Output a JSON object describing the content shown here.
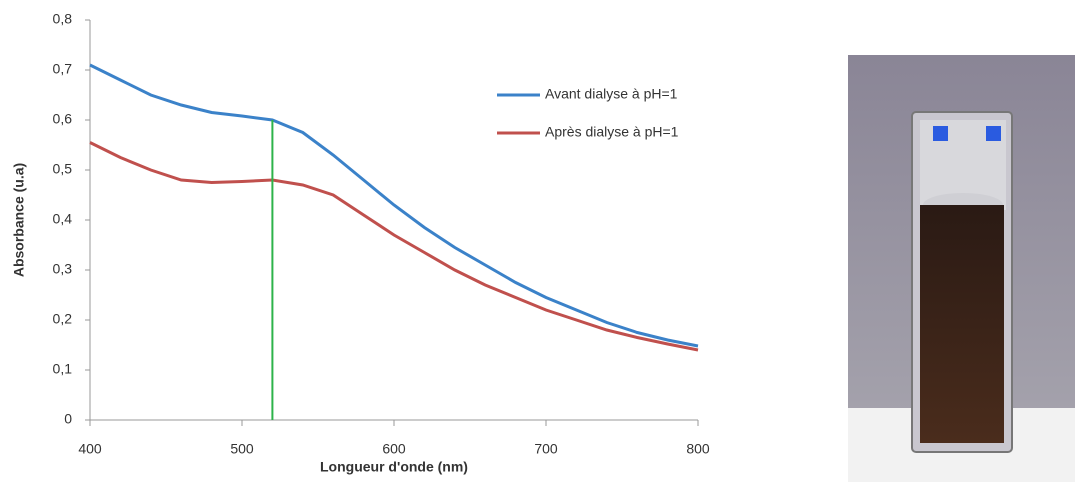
{
  "chart_data": {
    "type": "line",
    "y_label": "Absorbance (u.a)",
    "x_label": "Longueur d'onde (nm)",
    "x": [
      400,
      420,
      440,
      460,
      480,
      500,
      520,
      540,
      560,
      580,
      600,
      620,
      640,
      660,
      680,
      700,
      720,
      740,
      760,
      780,
      800
    ],
    "series": [
      {
        "name": "Avant dialyse à pH=1",
        "color": "#3b82c9",
        "values": [
          0.71,
          0.68,
          0.65,
          0.63,
          0.615,
          0.608,
          0.6,
          0.575,
          0.53,
          0.48,
          0.43,
          0.385,
          0.345,
          0.31,
          0.275,
          0.245,
          0.22,
          0.195,
          0.175,
          0.16,
          0.148
        ]
      },
      {
        "name": "Après dialyse à pH=1",
        "color": "#c0504d",
        "values": [
          0.555,
          0.525,
          0.5,
          0.48,
          0.475,
          0.477,
          0.48,
          0.47,
          0.45,
          0.41,
          0.37,
          0.335,
          0.3,
          0.27,
          0.245,
          0.22,
          0.2,
          0.18,
          0.165,
          0.152,
          0.14
        ]
      }
    ],
    "marker_x": 520,
    "marker_color": "#2db34a",
    "xlim": [
      400,
      800
    ],
    "xticks": [
      400,
      500,
      600,
      700,
      800
    ],
    "ylim": [
      0,
      0.8
    ],
    "yticks": [
      0,
      {
        "value": 0.1,
        "label": "0,1"
      },
      {
        "value": 0.2,
        "label": "0,2"
      },
      {
        "value": 0.3,
        "label": "0,3"
      },
      {
        "value": 0.4,
        "label": "0,4"
      },
      {
        "value": 0.5,
        "label": "0,5"
      },
      {
        "value": 0.6,
        "label": "0,6"
      },
      {
        "value": 0.7,
        "label": "0,7"
      },
      {
        "value": 0.8,
        "label": "0,8"
      }
    ],
    "grid": false
  }
}
